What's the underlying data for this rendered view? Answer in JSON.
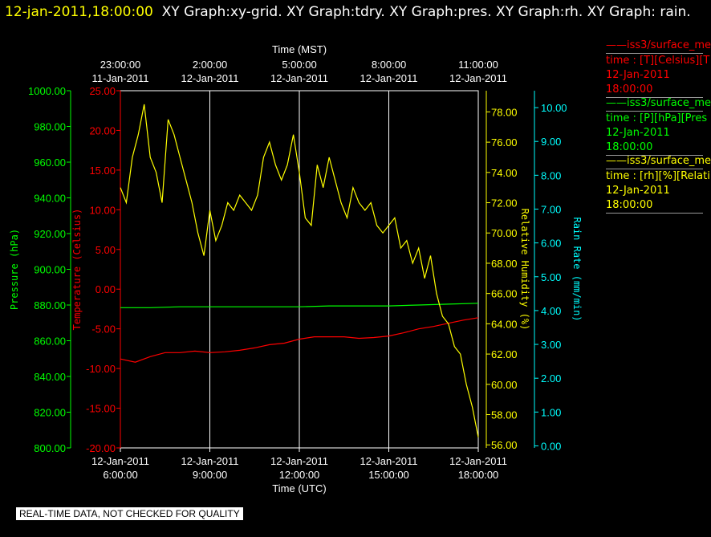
{
  "title": {
    "timestamp": "12-jan-2011,18:00:00",
    "graphs": "XY Graph:xy-grid.  XY Graph:tdry.  XY Graph:pres.  XY Graph:rh.  XY Graph: rain."
  },
  "legend": [
    {
      "line": "iss3/surface_me",
      "desc": "time : [T][Celsius][T",
      "date": "12-Jan-2011",
      "time": "18:00:00",
      "color": "#ff0000"
    },
    {
      "line": "iss3/surface_me",
      "desc": "time : [P][hPa][Pres",
      "date": "12-Jan-2011",
      "time": "18:00:00",
      "color": "#00ff00"
    },
    {
      "line": "iss3/surface_me",
      "desc": "time : [rh][%][Relati",
      "date": "12-Jan-2011",
      "time": "18:00:00",
      "color": "#ffff00"
    }
  ],
  "footer": "REAL-TIME DATA, NOT CHECKED FOR QUALITY",
  "chart_data": {
    "type": "line",
    "top_axis": {
      "label": "Time (MST)",
      "ticks": [
        {
          "time": "23:00:00",
          "date": "11-Jan-2011"
        },
        {
          "time": "2:00:00",
          "date": "12-Jan-2011"
        },
        {
          "time": "5:00:00",
          "date": "12-Jan-2011"
        },
        {
          "time": "8:00:00",
          "date": "12-Jan-2011"
        },
        {
          "time": "11:00:00",
          "date": "12-Jan-2011"
        }
      ]
    },
    "bottom_axis": {
      "label": "Time (UTC)",
      "range_hours": [
        6,
        18
      ],
      "ticks": [
        {
          "date": "12-Jan-2011",
          "time": "6:00:00"
        },
        {
          "date": "12-Jan-2011",
          "time": "9:00:00"
        },
        {
          "date": "12-Jan-2011",
          "time": "12:00:00"
        },
        {
          "date": "12-Jan-2011",
          "time": "15:00:00"
        },
        {
          "date": "12-Jan-2011",
          "time": "18:00:00"
        }
      ]
    },
    "grid": "vertical",
    "y_axes": [
      {
        "id": "pres",
        "label": "Pressure (hPa)",
        "color": "#00ff00",
        "min": 800,
        "max": 1000,
        "ticks": [
          "800.00",
          "820.00",
          "840.00",
          "860.00",
          "880.00",
          "900.00",
          "920.00",
          "940.00",
          "960.00",
          "980.00",
          "1000.00"
        ]
      },
      {
        "id": "temp",
        "label": "Temperature (Celsius)",
        "color": "#ff0000",
        "min": -20,
        "max": 25,
        "ticks": [
          "-20.00",
          "-15.00",
          "-10.00",
          "-5.00",
          "0.00",
          "5.00",
          "10.00",
          "15.00",
          "20.00",
          "25.00"
        ]
      },
      {
        "id": "rh",
        "label": "Relative Humidity (%)",
        "color": "#ffff00",
        "min": 55.8,
        "max": 79.4,
        "ticks": [
          "56.00",
          "58.00",
          "60.00",
          "62.00",
          "64.00",
          "66.00",
          "68.00",
          "70.00",
          "72.00",
          "74.00",
          "76.00",
          "78.00"
        ]
      },
      {
        "id": "rain",
        "label": "Rain Rate (mm/min)",
        "color": "#00ffff",
        "min": -0.06,
        "max": 10.5,
        "ticks": [
          "0.00",
          "1.00",
          "2.00",
          "3.00",
          "4.00",
          "5.00",
          "6.00",
          "7.00",
          "8.00",
          "9.00",
          "10.00"
        ]
      }
    ],
    "series": [
      {
        "name": "iss3/surface_me [T][Celsius]",
        "axis": "temp",
        "color": "#ff0000",
        "x": [
          6.0,
          6.5,
          7.0,
          7.5,
          8.0,
          8.5,
          9.0,
          9.5,
          10.0,
          10.5,
          11.0,
          11.5,
          12.0,
          12.5,
          13.0,
          13.5,
          14.0,
          14.5,
          15.0,
          15.5,
          16.0,
          16.5,
          17.0,
          17.5,
          18.0
        ],
        "y": [
          -8.8,
          -9.2,
          -8.5,
          -8.0,
          -8.0,
          -7.8,
          -8.0,
          -7.9,
          -7.7,
          -7.4,
          -7.0,
          -6.8,
          -6.3,
          -6.0,
          -6.0,
          -6.0,
          -6.2,
          -6.1,
          -5.9,
          -5.5,
          -5.0,
          -4.7,
          -4.3,
          -3.9,
          -3.6
        ]
      },
      {
        "name": "iss3/surface_me [P][hPa]",
        "axis": "pres",
        "color": "#00ff00",
        "x": [
          6.0,
          7.0,
          8.0,
          9.0,
          10.0,
          11.0,
          12.0,
          13.0,
          14.0,
          15.0,
          16.0,
          17.0,
          18.0
        ],
        "y": [
          878.5,
          878.5,
          879.0,
          879.0,
          879.0,
          879.0,
          879.0,
          879.5,
          879.5,
          879.5,
          880.0,
          880.5,
          881.0
        ]
      },
      {
        "name": "iss3/surface_me [rh][%]",
        "axis": "rh",
        "color": "#ffff00",
        "x": [
          6.0,
          6.2,
          6.4,
          6.6,
          6.8,
          7.0,
          7.2,
          7.4,
          7.6,
          7.8,
          8.0,
          8.2,
          8.4,
          8.6,
          8.8,
          9.0,
          9.2,
          9.4,
          9.6,
          9.8,
          10.0,
          10.2,
          10.4,
          10.6,
          10.8,
          11.0,
          11.2,
          11.4,
          11.6,
          11.8,
          12.0,
          12.2,
          12.4,
          12.6,
          12.8,
          13.0,
          13.2,
          13.4,
          13.6,
          13.8,
          14.0,
          14.2,
          14.4,
          14.6,
          14.8,
          15.0,
          15.2,
          15.4,
          15.6,
          15.8,
          16.0,
          16.2,
          16.4,
          16.6,
          16.8,
          17.0,
          17.2,
          17.4,
          17.6,
          17.8,
          18.0
        ],
        "y": [
          73.0,
          72.0,
          75.0,
          76.5,
          78.5,
          75.0,
          74.0,
          72.0,
          77.5,
          76.5,
          75.0,
          73.5,
          72.0,
          70.0,
          68.5,
          71.5,
          69.5,
          70.5,
          72.0,
          71.5,
          72.5,
          72.0,
          71.5,
          72.5,
          75.0,
          76.0,
          74.5,
          73.5,
          74.5,
          76.5,
          74.0,
          71.0,
          70.5,
          74.5,
          73.0,
          75.0,
          73.5,
          72.0,
          71.0,
          73.0,
          72.0,
          71.5,
          72.0,
          70.5,
          70.0,
          70.5,
          71.0,
          69.0,
          69.5,
          68.0,
          69.0,
          67.0,
          68.5,
          66.0,
          64.5,
          64.0,
          62.5,
          62.0,
          60.0,
          58.5,
          56.5
        ]
      }
    ]
  }
}
